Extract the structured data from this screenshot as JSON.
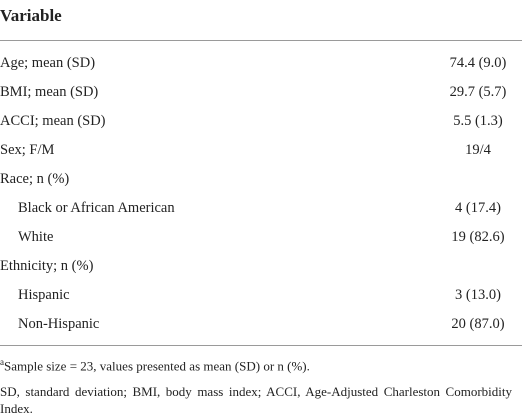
{
  "table": {
    "header": [
      "Variable"
    ],
    "rows": [
      {
        "label": "Age; mean (SD)",
        "value": "74.4 (9.0)"
      },
      {
        "label": "BMI; mean (SD)",
        "value": "29.7 (5.7)"
      },
      {
        "label": "ACCI; mean (SD)",
        "value": "5.5 (1.3)"
      },
      {
        "label": "Sex; F/M",
        "value": "19/4"
      },
      {
        "label": "Race; n (%)",
        "items": [
          {
            "label": "Black or African American",
            "value": "4 (17.4)"
          },
          {
            "label": "White",
            "value": "19 (82.6)"
          }
        ]
      },
      {
        "label": "Ethnicity; n (%)",
        "items": [
          {
            "label": "Hispanic",
            "value": "3 (13.0)"
          },
          {
            "label": "Non-Hispanic",
            "value": "20 (87.0)"
          }
        ]
      }
    ]
  },
  "footnotes": {
    "marker": "a",
    "note": "Sample size = 23, values presented as mean (SD) or n (%).",
    "abbreviations": "SD, standard deviation; BMI, body mass index; ACCI, Age-Adjusted Charleston Comorbidity Index."
  }
}
